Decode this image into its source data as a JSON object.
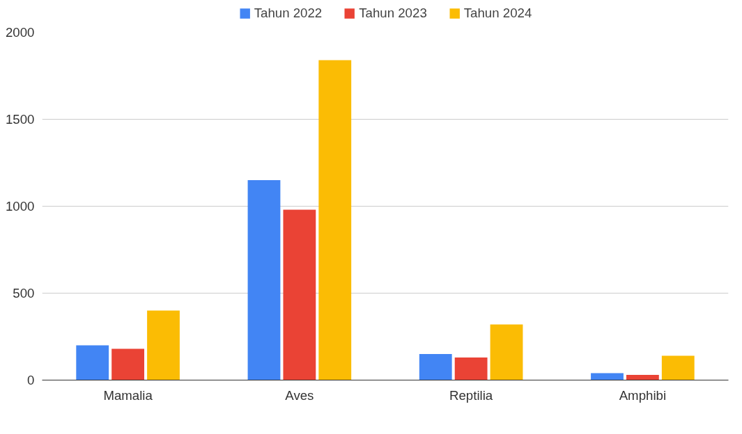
{
  "chart_data": {
    "type": "bar",
    "categories": [
      "Mamalia",
      "Aves",
      "Reptilia",
      "Amphibi"
    ],
    "series": [
      {
        "name": "Tahun 2022",
        "color": "#4285f4",
        "values": [
          200,
          1150,
          150,
          40
        ]
      },
      {
        "name": "Tahun 2023",
        "color": "#ea4335",
        "values": [
          180,
          980,
          130,
          30
        ]
      },
      {
        "name": "Tahun 2024",
        "color": "#fbbc04",
        "values": [
          400,
          1840,
          320,
          140
        ]
      }
    ],
    "ylim": [
      0,
      2000
    ],
    "yticks": [
      0,
      500,
      1000,
      1500,
      2000
    ],
    "grid": "y",
    "legend": "top"
  }
}
